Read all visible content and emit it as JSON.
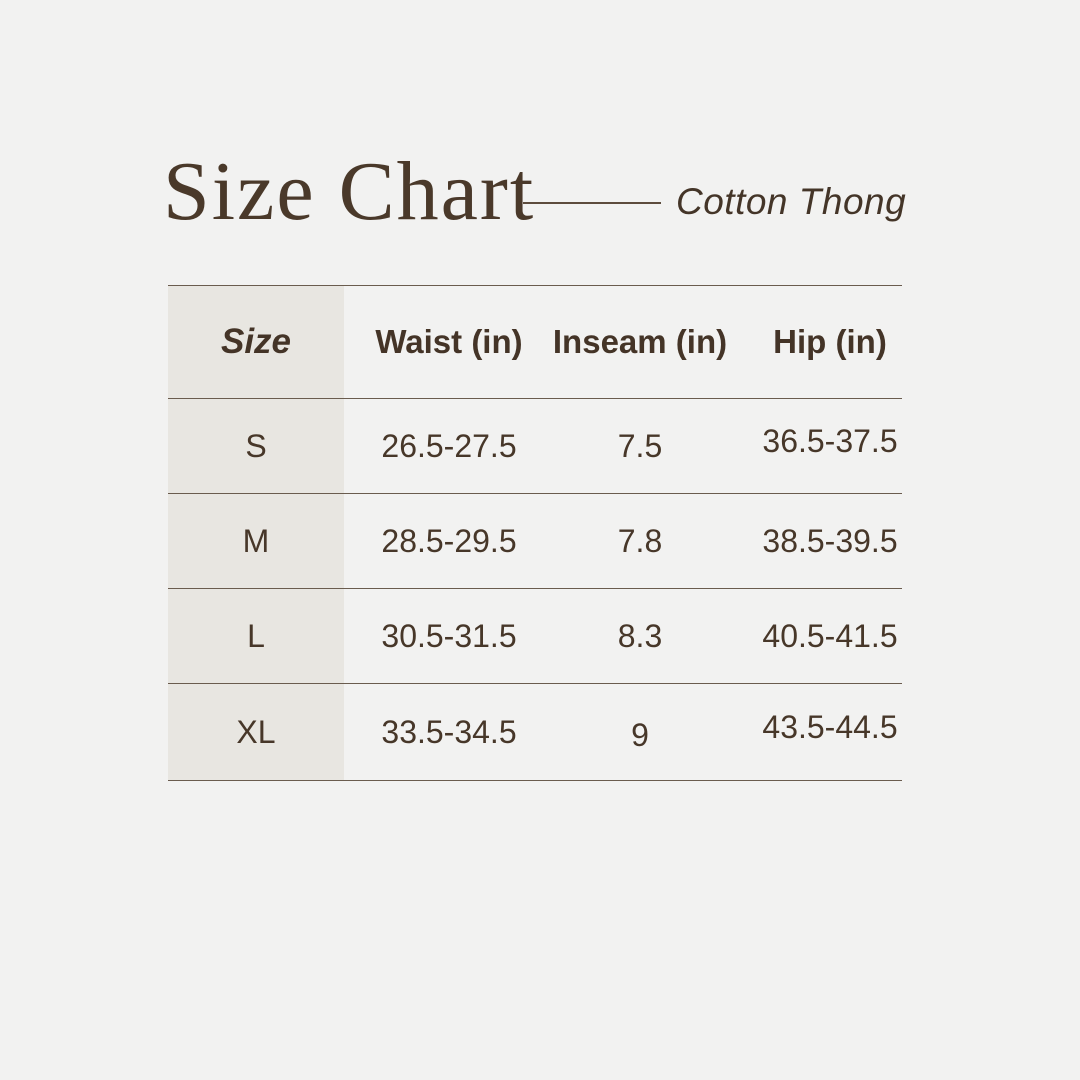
{
  "page": {
    "background_color": "#f2f2f1",
    "size_column_color": "#e8e6e1",
    "line_color": "#6a5c4e",
    "text_color": "#473729",
    "title_color": "#4a392a"
  },
  "header": {
    "title": "Size Chart",
    "product": "Cotton Thong"
  },
  "table": {
    "columns": [
      "Size",
      "Waist (in)",
      "Inseam (in)",
      "Hip (in)"
    ],
    "rows": [
      {
        "size": "S",
        "waist": "26.5-27.5",
        "inseam": "7.5",
        "hip": "36.5-37.5"
      },
      {
        "size": "M",
        "waist": "28.5-29.5",
        "inseam": "7.8",
        "hip": "38.5-39.5"
      },
      {
        "size": "L",
        "waist": "30.5-31.5",
        "inseam": "8.3",
        "hip": "40.5-41.5"
      },
      {
        "size": "XL",
        "waist": "33.5-34.5",
        "inseam": "9",
        "hip": "43.5-44.5"
      }
    ]
  }
}
